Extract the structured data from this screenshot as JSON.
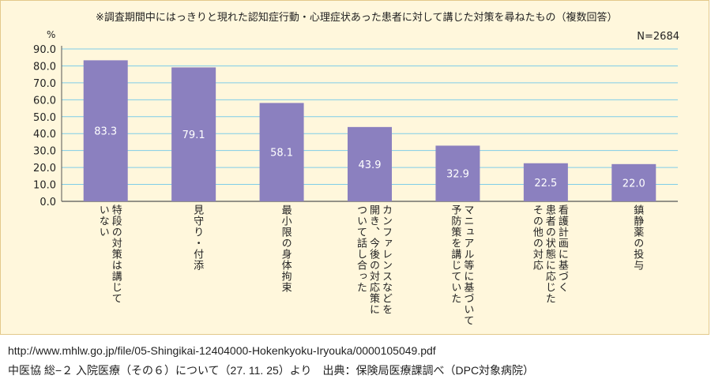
{
  "chart_data": {
    "type": "bar",
    "title": "※調査期間中にはっきりと現れた認知症行動・心理症状あった患者に対して講じた対策を尋ねたもの（複数回答）",
    "n_label": "N=2684",
    "unit": "%",
    "ylim": [
      0,
      90
    ],
    "yticks": [
      "0.0",
      "10.0",
      "20.0",
      "30.0",
      "40.0",
      "50.0",
      "60.0",
      "70.0",
      "80.0",
      "90.0"
    ],
    "grid": true,
    "bar_color": "#8b80bf",
    "categories": [
      "特段の対策は講じて\nいない",
      "見守り・付添",
      "最小限の身体拘束",
      "カンファレンスなどを\n開き、今後の対応策に\nついて話し合った",
      "マニュアル等に基づいて\n予防策を講じていた",
      "看護計画に基づく\n患者の状態に応じた\nその他の対応",
      "鎮静薬の投与"
    ],
    "values": [
      83.3,
      79.1,
      58.1,
      43.9,
      32.9,
      22.5,
      22.0
    ],
    "value_labels": [
      "83.3",
      "79.1",
      "58.1",
      "43.9",
      "32.9",
      "22.5",
      "22.0"
    ]
  },
  "footer": {
    "url": "http://www.mhlw.go.jp/file/05-Shingikai-12404000-Hokenkyoku-Iryouka/0000105049.pdf",
    "source": "中医協 総−２ 入院医療（その６）について（27. 11. 25）より　出典：保険局医療課調べ（DPC対象病院）"
  }
}
